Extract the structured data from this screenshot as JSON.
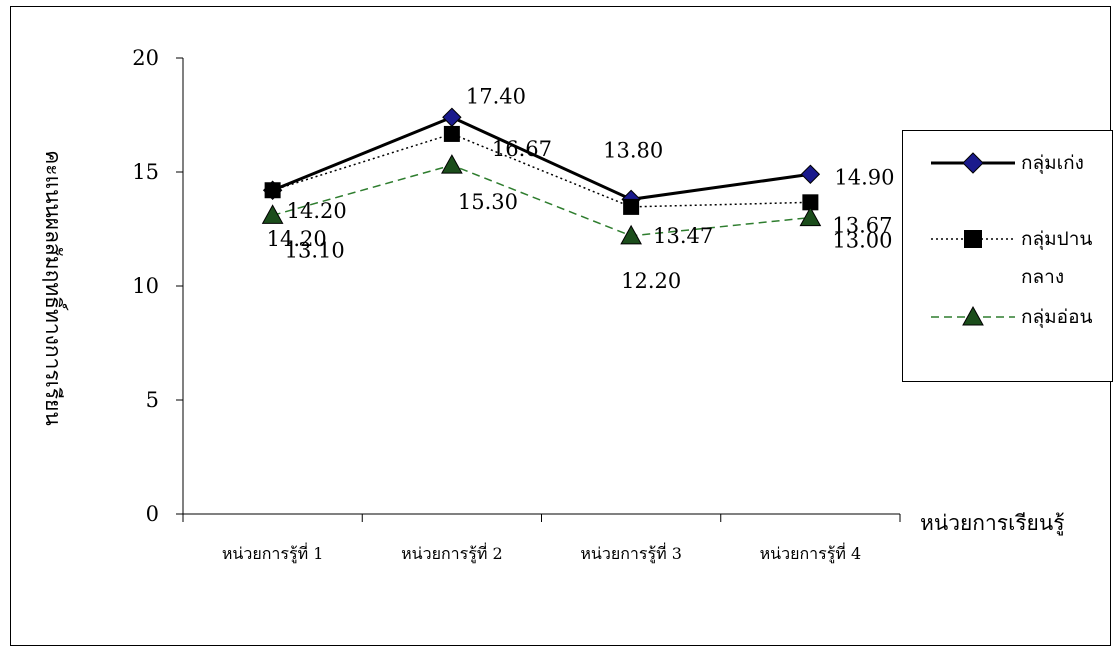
{
  "chart_data": {
    "type": "line",
    "categories": [
      "หน่วยการรู้ที่ 1",
      "หน่วยการรู้ที่ 2",
      "หน่วยการรู้ที่ 3",
      "หน่วยการรู้ที่ 4"
    ],
    "series": [
      {
        "name": "กลุ่มเก่ง",
        "values": [
          14.2,
          17.4,
          13.8,
          14.9
        ],
        "labels": [
          "14.20",
          "17.40",
          "13.80",
          "14.90"
        ],
        "color": "#000000",
        "marker": "diamond",
        "marker_color": "#1a1a8c",
        "line_style": "solid"
      },
      {
        "name": "กลุ่มปานกลาง",
        "name_lines": [
          "กลุ่มปาน",
          "กลาง"
        ],
        "values": [
          14.2,
          16.67,
          13.47,
          13.67
        ],
        "labels": [
          "14.20",
          "16.67",
          "13.47",
          "13.67"
        ],
        "color": "#000000",
        "marker": "square",
        "marker_color": "#000000",
        "line_style": "dotted"
      },
      {
        "name": "กลุ่มอ่อน",
        "values": [
          13.1,
          15.3,
          12.2,
          13.0
        ],
        "labels": [
          "13.10",
          "15.30",
          "12.20",
          "13.00"
        ],
        "color": "#2e7d2e",
        "marker": "triangle",
        "marker_color": "#1b4d1b",
        "line_style": "dashed"
      }
    ],
    "xlabel": "หน่วยการเรียนรู้",
    "ylabel": "คะแนนผลสัมฤทธิ์ทางการเรียน",
    "ylim": [
      0,
      20
    ],
    "yticks": [
      0,
      5,
      10,
      15,
      20
    ],
    "grid": false,
    "legend_position": "right"
  }
}
